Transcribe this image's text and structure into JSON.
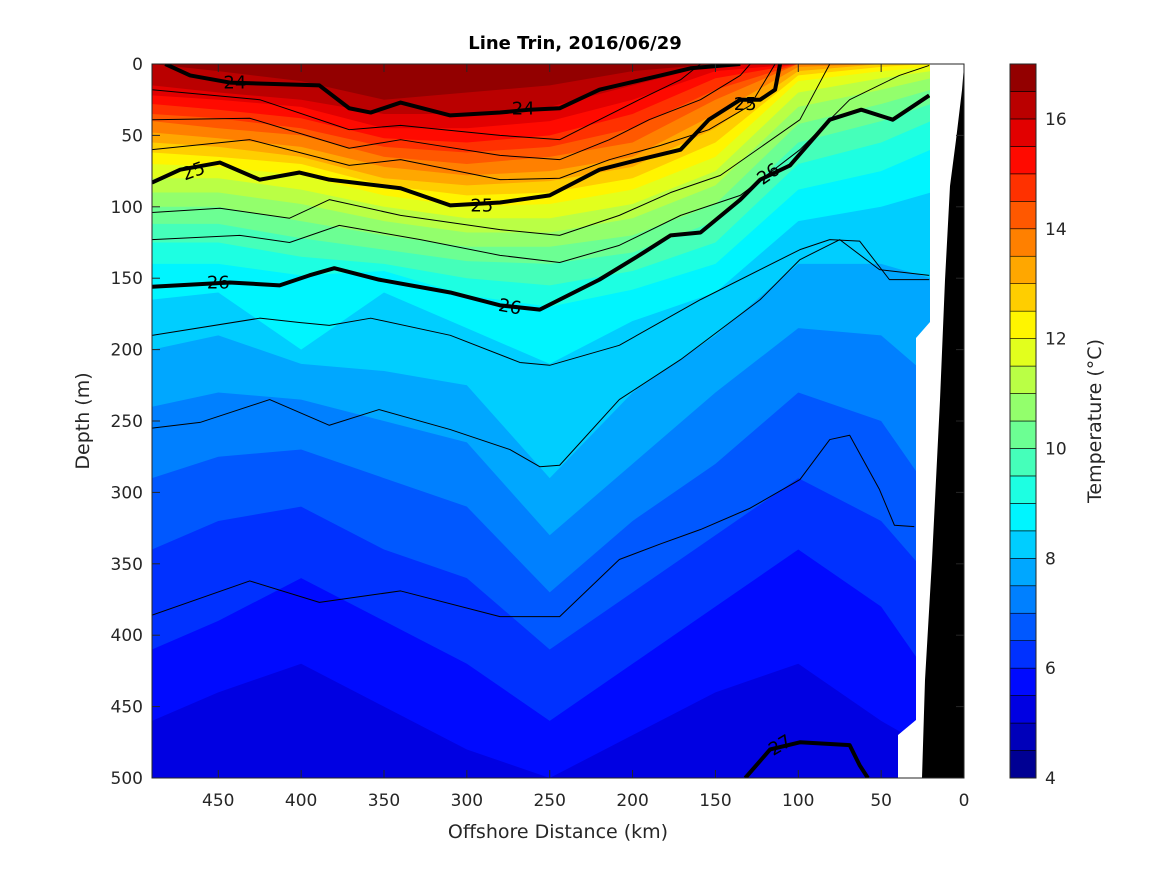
{
  "chart_data": {
    "type": "contour",
    "title": "Line Trin, 2016/06/29",
    "xlabel": "Offshore Distance (km)",
    "ylabel": "Depth (m)",
    "colorbar_label": "Temperature (°C)",
    "xlim": [
      490,
      0
    ],
    "ylim": [
      0,
      500
    ],
    "x_ticks": [
      "450",
      "400",
      "350",
      "300",
      "250",
      "200",
      "150",
      "100",
      "50",
      "0"
    ],
    "x_tick_values": [
      450,
      400,
      350,
      300,
      250,
      200,
      150,
      100,
      50,
      0
    ],
    "y_ticks": [
      "0",
      "50",
      "100",
      "150",
      "200",
      "250",
      "300",
      "350",
      "400",
      "450",
      "500"
    ],
    "y_tick_values": [
      0,
      50,
      100,
      150,
      200,
      250,
      300,
      350,
      400,
      450,
      500
    ],
    "colorbar": {
      "range": [
        4,
        17
      ],
      "step": 0.5,
      "ticks": [
        "4",
        "6",
        "8",
        "10",
        "12",
        "14",
        "16"
      ],
      "tick_values": [
        4,
        6,
        8,
        10,
        12,
        14,
        16
      ],
      "colormap": "jet"
    },
    "temperature_isotherms": {
      "stations_km": [
        490,
        450,
        400,
        350,
        300,
        250,
        200,
        150,
        100,
        50,
        20
      ],
      "background_temp": 5.25,
      "levels": [
        {
          "t": 5.5,
          "depth_m": [
            460,
            440,
            420,
            450,
            480,
            500,
            470,
            440,
            420,
            460,
            480
          ]
        },
        {
          "t": 6,
          "depth_m": [
            410,
            390,
            360,
            390,
            420,
            460,
            420,
            380,
            340,
            380,
            430
          ]
        },
        {
          "t": 6.5,
          "depth_m": [
            340,
            320,
            310,
            340,
            360,
            410,
            370,
            330,
            290,
            320,
            360
          ]
        },
        {
          "t": 7,
          "depth_m": [
            290,
            275,
            270,
            290,
            310,
            370,
            320,
            280,
            230,
            250,
            300
          ]
        },
        {
          "t": 7.5,
          "depth_m": [
            240,
            230,
            235,
            250,
            265,
            330,
            280,
            230,
            185,
            190,
            220
          ]
        },
        {
          "t": 8,
          "depth_m": [
            200,
            190,
            210,
            215,
            225,
            290,
            230,
            190,
            140,
            140,
            150
          ]
        },
        {
          "t": 8.5,
          "depth_m": [
            165,
            160,
            200,
            160,
            185,
            210,
            180,
            160,
            110,
            100,
            90
          ]
        },
        {
          "t": 9,
          "depth_m": [
            140,
            140,
            148,
            145,
            162,
            170,
            158,
            140,
            88,
            75,
            60
          ]
        },
        {
          "t": 9.5,
          "depth_m": [
            125,
            125,
            135,
            140,
            150,
            155,
            145,
            125,
            70,
            55,
            40
          ]
        },
        {
          "t": 10,
          "depth_m": [
            112,
            112,
            122,
            130,
            138,
            140,
            132,
            110,
            55,
            40,
            28
          ]
        },
        {
          "t": 10.5,
          "depth_m": [
            100,
            100,
            110,
            120,
            128,
            128,
            120,
            98,
            42,
            28,
            18
          ]
        },
        {
          "t": 11,
          "depth_m": [
            90,
            90,
            98,
            110,
            118,
            118,
            108,
            85,
            30,
            18,
            10
          ]
        },
        {
          "t": 11.5,
          "depth_m": [
            80,
            80,
            88,
            100,
            108,
            108,
            98,
            75,
            20,
            10,
            5
          ]
        },
        {
          "t": 12,
          "depth_m": [
            70,
            72,
            78,
            92,
            100,
            98,
            88,
            65,
            12,
            5,
            2
          ]
        },
        {
          "t": 12.5,
          "depth_m": [
            62,
            65,
            70,
            85,
            92,
            90,
            80,
            55,
            8,
            2,
            0
          ]
        },
        {
          "t": 13,
          "depth_m": [
            55,
            58,
            65,
            80,
            85,
            82,
            72,
            45,
            5,
            0,
            0
          ]
        },
        {
          "t": 13.5,
          "depth_m": [
            48,
            52,
            58,
            72,
            78,
            75,
            65,
            35,
            2,
            0,
            0
          ]
        },
        {
          "t": 14,
          "depth_m": [
            40,
            45,
            50,
            65,
            70,
            65,
            55,
            25,
            0,
            0,
            0
          ]
        },
        {
          "t": 14.5,
          "depth_m": [
            35,
            38,
            45,
            58,
            62,
            58,
            45,
            18,
            0,
            0,
            0
          ]
        },
        {
          "t": 15,
          "depth_m": [
            28,
            32,
            38,
            52,
            55,
            50,
            35,
            10,
            0,
            0,
            0
          ]
        },
        {
          "t": 15.5,
          "depth_m": [
            22,
            25,
            30,
            45,
            45,
            40,
            25,
            5,
            0,
            0,
            0
          ]
        },
        {
          "t": 16,
          "depth_m": [
            15,
            20,
            25,
            35,
            35,
            30,
            15,
            0,
            0,
            0,
            0
          ]
        },
        {
          "t": 16.5,
          "depth_m": [
            0,
            5,
            12,
            25,
            20,
            15,
            5,
            0,
            0,
            0,
            0
          ]
        }
      ]
    },
    "density_contours": [
      {
        "value": 24,
        "bold": true,
        "points": [
          [
            482,
            0
          ],
          [
            467,
            8
          ],
          [
            443,
            13
          ],
          [
            389,
            15
          ],
          [
            371,
            31
          ],
          [
            358,
            34
          ],
          [
            340,
            27
          ],
          [
            310,
            36
          ],
          [
            280,
            34
          ],
          [
            262,
            32
          ],
          [
            244,
            31
          ],
          [
            220,
            18
          ],
          [
            183,
            8
          ],
          [
            165,
            3
          ],
          [
            135,
            0
          ]
        ]
      },
      {
        "value": 24.2,
        "bold": false,
        "points": [
          [
            490,
            18
          ],
          [
            425,
            25
          ],
          [
            371,
            46
          ],
          [
            340,
            43
          ],
          [
            280,
            50
          ],
          [
            244,
            53
          ],
          [
            220,
            39
          ],
          [
            196,
            25
          ],
          [
            171,
            11
          ],
          [
            159,
            0
          ]
        ]
      },
      {
        "value": 24.4,
        "bold": false,
        "points": [
          [
            490,
            39
          ],
          [
            431,
            38
          ],
          [
            371,
            59
          ],
          [
            340,
            53
          ],
          [
            280,
            64
          ],
          [
            244,
            67
          ],
          [
            214,
            53
          ],
          [
            190,
            39
          ],
          [
            159,
            25
          ],
          [
            135,
            8
          ],
          [
            129,
            0
          ]
        ]
      },
      {
        "value": 24.8,
        "bold": false,
        "points": [
          [
            490,
            60
          ],
          [
            431,
            53
          ],
          [
            371,
            71
          ],
          [
            340,
            67
          ],
          [
            280,
            81
          ],
          [
            244,
            80
          ],
          [
            214,
            67
          ],
          [
            183,
            57
          ],
          [
            154,
            46
          ],
          [
            129,
            29
          ],
          [
            114,
            0
          ]
        ]
      },
      {
        "value": 25,
        "bold": true,
        "points": [
          [
            490,
            83
          ],
          [
            473,
            74
          ],
          [
            449,
            69
          ],
          [
            425,
            81
          ],
          [
            401,
            76
          ],
          [
            383,
            81
          ],
          [
            340,
            87
          ],
          [
            310,
            99
          ],
          [
            280,
            97
          ],
          [
            250,
            92
          ],
          [
            220,
            74
          ],
          [
            196,
            67
          ],
          [
            171,
            60
          ],
          [
            154,
            39
          ],
          [
            135,
            25
          ],
          [
            123,
            25
          ],
          [
            114,
            18
          ],
          [
            111,
            0
          ]
        ]
      },
      {
        "value": 25.2,
        "bold": false,
        "points": [
          [
            490,
            104
          ],
          [
            449,
            101
          ],
          [
            407,
            108
          ],
          [
            383,
            95
          ],
          [
            340,
            106
          ],
          [
            280,
            116
          ],
          [
            244,
            120
          ],
          [
            208,
            106
          ],
          [
            177,
            90
          ],
          [
            147,
            78
          ],
          [
            99,
            39
          ],
          [
            87,
            13
          ],
          [
            81,
            0
          ]
        ]
      },
      {
        "value": 25.6,
        "bold": false,
        "points": [
          [
            490,
            123
          ],
          [
            437,
            120
          ],
          [
            407,
            125
          ],
          [
            377,
            113
          ],
          [
            328,
            123
          ],
          [
            280,
            134
          ],
          [
            244,
            139
          ],
          [
            208,
            127
          ],
          [
            171,
            106
          ],
          [
            135,
            92
          ],
          [
            99,
            60
          ],
          [
            69,
            25
          ],
          [
            39,
            8
          ],
          [
            21,
            1
          ]
        ]
      },
      {
        "value": 26,
        "bold": true,
        "points": [
          [
            490,
            156
          ],
          [
            443,
            153
          ],
          [
            413,
            155
          ],
          [
            395,
            148
          ],
          [
            380,
            143
          ],
          [
            353,
            151
          ],
          [
            310,
            160
          ],
          [
            280,
            169
          ],
          [
            256,
            172
          ],
          [
            220,
            151
          ],
          [
            196,
            134
          ],
          [
            177,
            120
          ],
          [
            159,
            118
          ],
          [
            135,
            95
          ],
          [
            123,
            81
          ],
          [
            105,
            71
          ],
          [
            81,
            39
          ],
          [
            62,
            32
          ],
          [
            43,
            39
          ],
          [
            21,
            22
          ]
        ]
      },
      {
        "value": 26.2,
        "bold": false,
        "points": [
          [
            490,
            190
          ],
          [
            425,
            178
          ],
          [
            401,
            181
          ],
          [
            383,
            183
          ],
          [
            358,
            178
          ],
          [
            310,
            190
          ],
          [
            268,
            209
          ],
          [
            250,
            211
          ],
          [
            208,
            197
          ],
          [
            159,
            165
          ],
          [
            99,
            130
          ],
          [
            81,
            123
          ],
          [
            63,
            124
          ],
          [
            45,
            151
          ],
          [
            21,
            151
          ]
        ]
      },
      {
        "value": 26.4,
        "bold": false,
        "points": [
          [
            490,
            255
          ],
          [
            461,
            251
          ],
          [
            419,
            235
          ],
          [
            383,
            253
          ],
          [
            353,
            242
          ],
          [
            310,
            256
          ],
          [
            274,
            270
          ],
          [
            256,
            282
          ],
          [
            244,
            281
          ],
          [
            208,
            235
          ],
          [
            171,
            207
          ],
          [
            123,
            165
          ],
          [
            99,
            137
          ],
          [
            75,
            123
          ],
          [
            51,
            144
          ],
          [
            21,
            148
          ]
        ]
      },
      {
        "value": 26.6,
        "bold": false,
        "points": [
          [
            490,
            386
          ],
          [
            431,
            362
          ],
          [
            389,
            377
          ],
          [
            340,
            369
          ],
          [
            280,
            387
          ],
          [
            244,
            387
          ],
          [
            208,
            347
          ],
          [
            183,
            336
          ],
          [
            159,
            326
          ],
          [
            129,
            311
          ],
          [
            99,
            291
          ],
          [
            81,
            263
          ],
          [
            69,
            260
          ],
          [
            51,
            298
          ],
          [
            42,
            323
          ],
          [
            30,
            324
          ]
        ]
      },
      {
        "value": 27,
        "bold": true,
        "points": [
          [
            132,
            500
          ],
          [
            117,
            480
          ],
          [
            99,
            475
          ],
          [
            69,
            477
          ],
          [
            63,
            491
          ],
          [
            58,
            500
          ]
        ]
      }
    ],
    "contour_labels": [
      {
        "text": "24",
        "km": 440,
        "m": 13,
        "angle": 0
      },
      {
        "text": "24",
        "km": 266,
        "m": 31,
        "angle": 0
      },
      {
        "text": "25",
        "km": 465,
        "m": 75,
        "angle": -20
      },
      {
        "text": "25",
        "km": 291,
        "m": 99,
        "angle": 0
      },
      {
        "text": "25",
        "km": 132,
        "m": 28,
        "angle": 0
      },
      {
        "text": "26",
        "km": 450,
        "m": 153,
        "angle": 0
      },
      {
        "text": "26",
        "km": 274,
        "m": 170,
        "angle": 10
      },
      {
        "text": "26",
        "km": 118,
        "m": 77,
        "angle": -35
      },
      {
        "text": "27",
        "km": 111,
        "m": 477,
        "angle": -30
      }
    ]
  }
}
